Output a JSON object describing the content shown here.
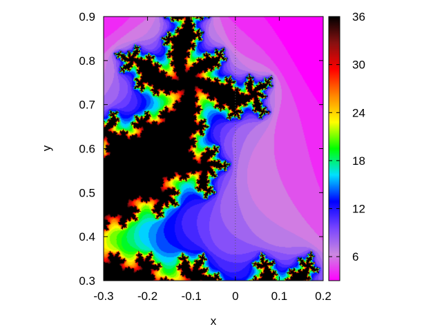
{
  "chart_data": {
    "type": "heatmap",
    "title": "",
    "xlabel": "x",
    "ylabel": "y",
    "xlim": [
      -0.3,
      0.2
    ],
    "ylim": [
      0.3,
      0.9
    ],
    "x_ticks": [
      "-0.3",
      "-0.2",
      "-0.1",
      "0",
      "0.1",
      "0.2"
    ],
    "y_ticks": [
      "0.3",
      "0.4",
      "0.5",
      "0.6",
      "0.7",
      "0.8",
      "0.9"
    ],
    "colorbar": {
      "range": [
        3,
        36
      ],
      "ticks": [
        "6",
        "12",
        "18",
        "24",
        "30",
        "36"
      ],
      "palette": [
        "#ff00ff",
        "#cc88e0",
        "#7744ff",
        "#0000ff",
        "#00e0ff",
        "#00ff00",
        "#ffff00",
        "#ff8800",
        "#ff0000",
        "#881111",
        "#000000"
      ]
    },
    "reference_line": {
      "x": 0,
      "style": "dotted"
    },
    "field": "escape-time iteration count (fractal), z -> z^2 + c, c = -0.5 + 0.6i",
    "max_iterations": 36
  }
}
